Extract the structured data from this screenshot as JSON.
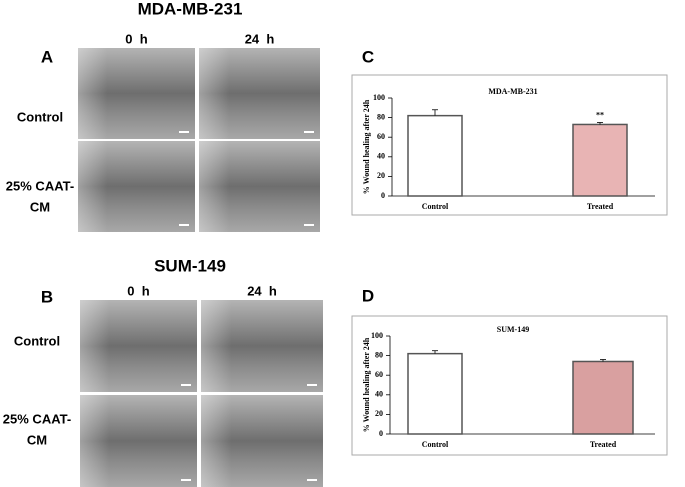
{
  "figure": {
    "panels": [
      {
        "label": "A",
        "title": "MDA-MB-231",
        "time_labels": [
          "0  h",
          "24  h"
        ],
        "row_labels": [
          [
            "Control"
          ],
          [
            "25% CAAT-",
            "CM"
          ]
        ]
      },
      {
        "label": "B",
        "title": "SUM-149",
        "time_labels": [
          "0  h",
          "24  h"
        ],
        "row_labels": [
          [
            "Control"
          ],
          [
            "25% CAAT-",
            "CM"
          ]
        ]
      }
    ]
  },
  "chart_data": [
    {
      "type": "bar",
      "label": "C",
      "title": "MDA-MB-231",
      "ylabel": "% Wound healing after 24h",
      "categories": [
        "Control",
        "Treated"
      ],
      "values": [
        82,
        73
      ],
      "errors": [
        6,
        2
      ],
      "significance": [
        null,
        "**"
      ],
      "colors": [
        "#ffffff",
        "#e8b4b4"
      ],
      "ylim": [
        0,
        100
      ],
      "yticks": [
        0,
        20,
        40,
        60,
        80,
        100
      ]
    },
    {
      "type": "bar",
      "label": "D",
      "title": "SUM-149",
      "ylabel": "% Wound healing after 24h",
      "categories": [
        "Control",
        "Treated"
      ],
      "values": [
        82,
        74
      ],
      "errors": [
        3,
        2
      ],
      "significance": [
        null,
        null
      ],
      "colors": [
        "#ffffff",
        "#d9a0a0"
      ],
      "ylim": [
        0,
        100
      ],
      "yticks": [
        0,
        20,
        40,
        60,
        80,
        100
      ]
    }
  ]
}
